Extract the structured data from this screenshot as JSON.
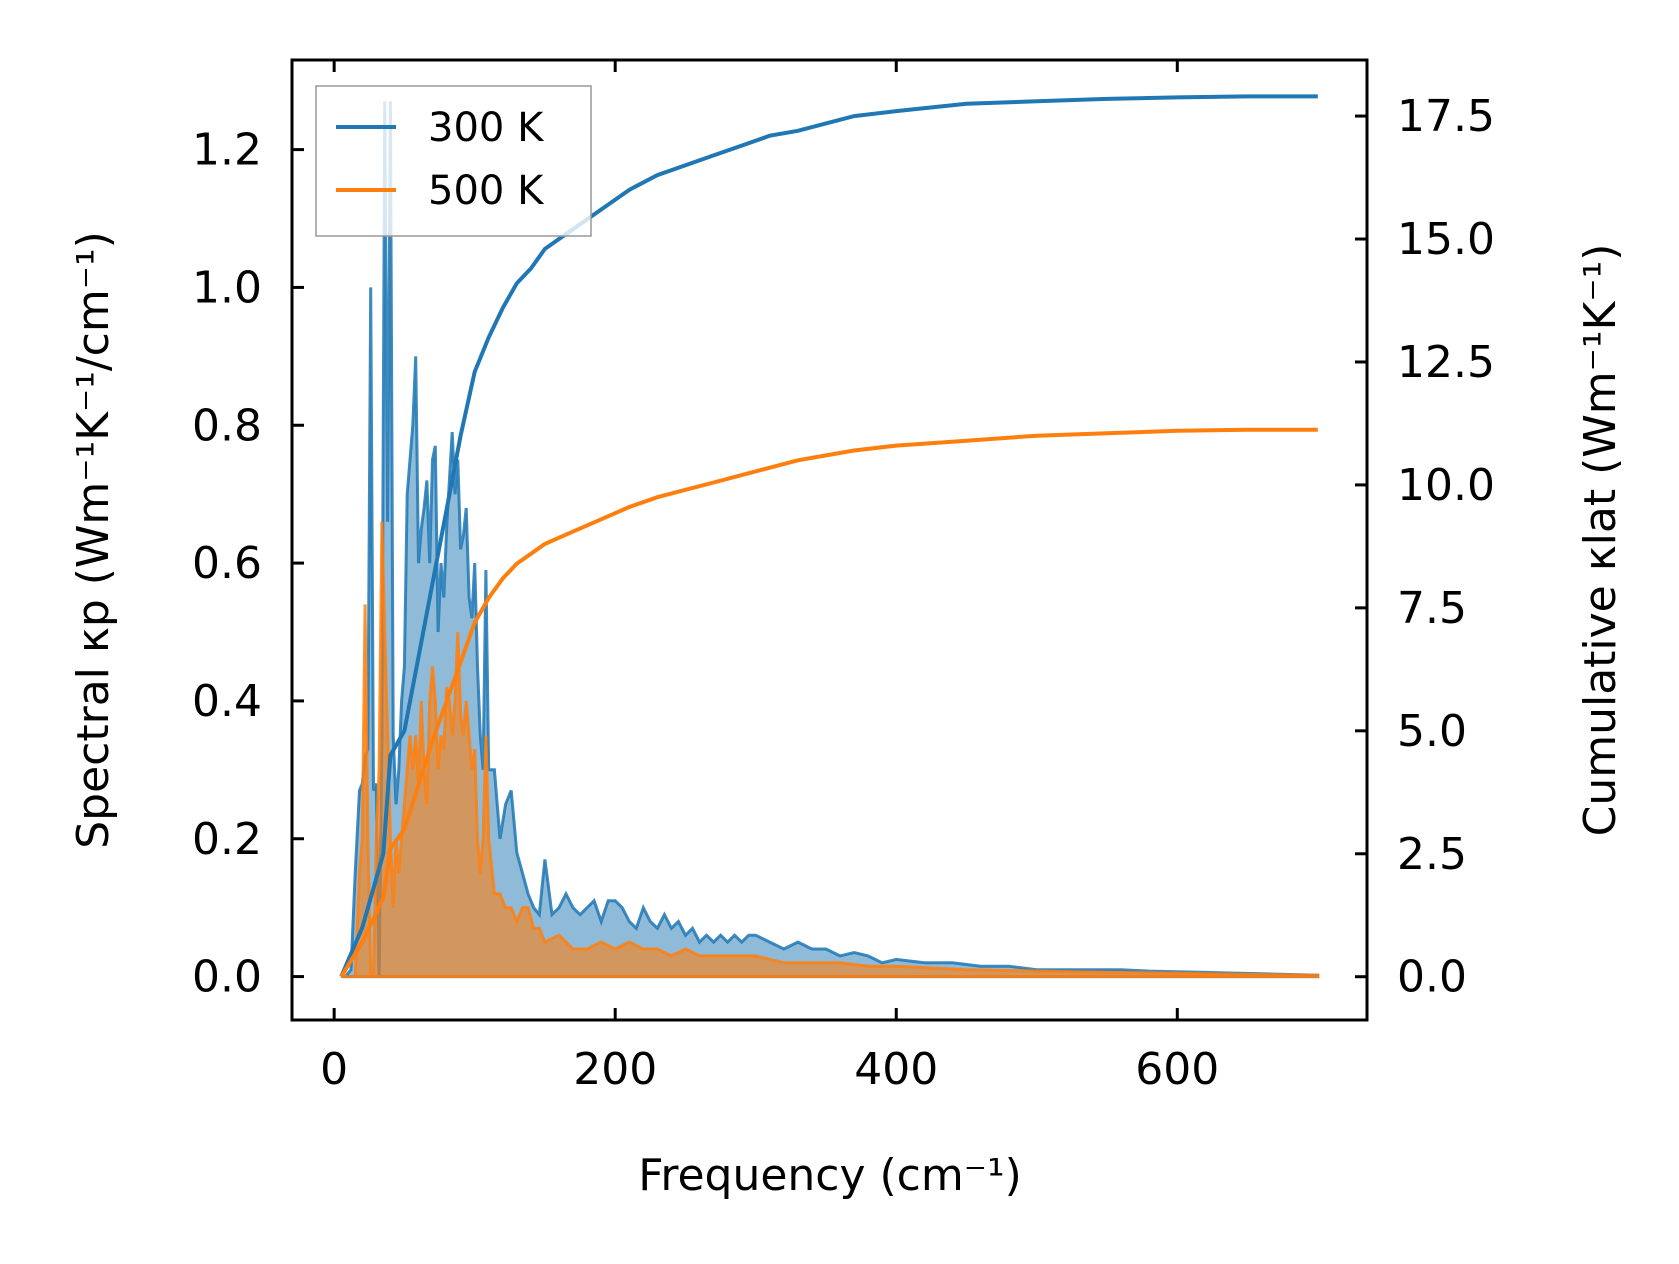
{
  "chart_data": {
    "type": "area+line (dual axis)",
    "xlabel": "Frequency (cm⁻¹)",
    "ylabel_left": "Spectral κp (Wm⁻¹K⁻¹/cm⁻¹)",
    "ylabel_right": "Cumulative κlat (Wm⁻¹K⁻¹)",
    "xlim": [
      -30,
      735
    ],
    "ylim_left": [
      -0.063,
      1.33
    ],
    "ylim_right": [
      -0.88,
      18.64
    ],
    "x_ticks": [
      "0",
      "200",
      "400",
      "600"
    ],
    "x_tick_values": [
      0,
      200,
      400,
      600
    ],
    "left_ticks": [
      "0.0",
      "0.2",
      "0.4",
      "0.6",
      "0.8",
      "1.0",
      "1.2"
    ],
    "left_tick_values": [
      0.0,
      0.2,
      0.4,
      0.6,
      0.8,
      1.0,
      1.2
    ],
    "right_ticks": [
      "0.0",
      "2.5",
      "5.0",
      "7.5",
      "10.0",
      "12.5",
      "15.0",
      "17.5"
    ],
    "right_tick_values": [
      0.0,
      2.5,
      5.0,
      7.5,
      10.0,
      12.5,
      15.0,
      17.5
    ],
    "legend": {
      "placement": "top-left",
      "entries": [
        "300 K",
        "500 K"
      ]
    },
    "colors": {
      "300K": "#1f77b4",
      "500K": "#ff7f0e"
    },
    "series": [
      {
        "name": "300 K",
        "spectral_x": [
          5,
          8,
          12,
          15,
          18,
          20,
          22,
          24,
          26,
          28,
          30,
          32,
          34,
          36,
          38,
          40,
          42,
          44,
          46,
          48,
          50,
          52,
          54,
          56,
          58,
          60,
          62,
          64,
          66,
          68,
          70,
          72,
          74,
          76,
          78,
          80,
          82,
          84,
          86,
          88,
          90,
          92,
          94,
          96,
          98,
          100,
          102,
          104,
          106,
          108,
          110,
          114,
          118,
          122,
          126,
          130,
          134,
          138,
          142,
          146,
          150,
          155,
          160,
          165,
          170,
          175,
          180,
          185,
          190,
          195,
          200,
          205,
          210,
          215,
          220,
          225,
          230,
          235,
          240,
          245,
          250,
          255,
          260,
          265,
          270,
          275,
          280,
          285,
          290,
          295,
          300,
          310,
          320,
          330,
          340,
          350,
          360,
          370,
          380,
          390,
          400,
          420,
          440,
          460,
          480,
          500,
          520,
          540,
          560,
          580,
          600,
          620,
          640,
          660,
          680,
          700
        ],
        "spectral_y": [
          0.0,
          0.0,
          0.01,
          0.15,
          0.27,
          0.28,
          0.32,
          0.33,
          1.0,
          0.27,
          0.28,
          0.0,
          0.35,
          1.27,
          0.66,
          1.27,
          0.35,
          0.25,
          0.3,
          0.4,
          0.45,
          0.7,
          0.75,
          0.8,
          0.9,
          0.6,
          0.65,
          0.68,
          0.72,
          0.6,
          0.75,
          0.77,
          0.5,
          0.6,
          0.55,
          0.65,
          0.72,
          0.79,
          0.7,
          0.75,
          0.62,
          0.64,
          0.68,
          0.55,
          0.52,
          0.6,
          0.45,
          0.35,
          0.3,
          0.59,
          0.3,
          0.3,
          0.2,
          0.25,
          0.27,
          0.18,
          0.15,
          0.12,
          0.1,
          0.09,
          0.17,
          0.09,
          0.1,
          0.12,
          0.1,
          0.09,
          0.1,
          0.11,
          0.08,
          0.11,
          0.11,
          0.1,
          0.08,
          0.07,
          0.1,
          0.08,
          0.07,
          0.09,
          0.07,
          0.08,
          0.06,
          0.07,
          0.05,
          0.06,
          0.05,
          0.06,
          0.05,
          0.06,
          0.05,
          0.06,
          0.06,
          0.05,
          0.04,
          0.05,
          0.04,
          0.04,
          0.03,
          0.035,
          0.03,
          0.02,
          0.025,
          0.02,
          0.02,
          0.015,
          0.015,
          0.01,
          0.01,
          0.01,
          0.01,
          0.008,
          0.007,
          0.006,
          0.005,
          0.004,
          0.003,
          0.002
        ],
        "cumulative_x": [
          5,
          20,
          35,
          40,
          50,
          60,
          70,
          80,
          90,
          100,
          110,
          120,
          130,
          140,
          150,
          170,
          190,
          210,
          230,
          250,
          270,
          290,
          310,
          330,
          350,
          370,
          400,
          450,
          500,
          550,
          600,
          650,
          700
        ],
        "cumulative_y": [
          0.0,
          1.0,
          2.5,
          4.5,
          5.0,
          6.5,
          8.0,
          9.5,
          11.0,
          12.3,
          13.0,
          13.6,
          14.1,
          14.4,
          14.8,
          15.2,
          15.6,
          16.0,
          16.3,
          16.5,
          16.7,
          16.9,
          17.1,
          17.2,
          17.35,
          17.5,
          17.6,
          17.75,
          17.8,
          17.85,
          17.88,
          17.9,
          17.9
        ]
      },
      {
        "name": "500 K",
        "spectral_x": [
          5,
          10,
          15,
          18,
          20,
          22,
          24,
          26,
          28,
          30,
          32,
          34,
          36,
          38,
          40,
          42,
          44,
          46,
          48,
          50,
          52,
          54,
          56,
          58,
          60,
          62,
          64,
          66,
          68,
          70,
          72,
          74,
          76,
          78,
          80,
          82,
          84,
          86,
          88,
          90,
          92,
          94,
          96,
          98,
          100,
          102,
          104,
          106,
          108,
          110,
          114,
          118,
          122,
          126,
          130,
          134,
          138,
          142,
          146,
          150,
          160,
          170,
          180,
          190,
          200,
          210,
          220,
          230,
          240,
          250,
          260,
          270,
          280,
          290,
          300,
          320,
          340,
          360,
          380,
          400,
          450,
          500,
          550,
          600,
          650,
          700
        ],
        "spectral_y": [
          0.0,
          0.0,
          0.0,
          0.15,
          0.2,
          0.54,
          0.2,
          0.0,
          0.0,
          0.2,
          0.3,
          0.66,
          0.5,
          0.35,
          0.2,
          0.1,
          0.2,
          0.15,
          0.2,
          0.25,
          0.3,
          0.35,
          0.3,
          0.35,
          0.28,
          0.4,
          0.3,
          0.25,
          0.4,
          0.45,
          0.4,
          0.3,
          0.35,
          0.33,
          0.42,
          0.4,
          0.35,
          0.4,
          0.5,
          0.38,
          0.35,
          0.4,
          0.35,
          0.3,
          0.33,
          0.2,
          0.15,
          0.2,
          0.35,
          0.2,
          0.12,
          0.12,
          0.1,
          0.1,
          0.08,
          0.1,
          0.1,
          0.07,
          0.07,
          0.05,
          0.06,
          0.04,
          0.04,
          0.05,
          0.04,
          0.05,
          0.04,
          0.04,
          0.03,
          0.04,
          0.03,
          0.03,
          0.03,
          0.03,
          0.03,
          0.02,
          0.02,
          0.02,
          0.015,
          0.015,
          0.01,
          0.008,
          0.006,
          0.005,
          0.003,
          0.002
        ],
        "cumulative_x": [
          5,
          20,
          35,
          40,
          50,
          60,
          70,
          80,
          90,
          100,
          110,
          120,
          130,
          140,
          150,
          170,
          190,
          210,
          230,
          250,
          270,
          290,
          310,
          330,
          350,
          370,
          400,
          450,
          500,
          550,
          600,
          650,
          700
        ],
        "cumulative_y": [
          0.0,
          0.7,
          1.6,
          2.6,
          3.0,
          3.9,
          4.8,
          5.6,
          6.4,
          7.2,
          7.7,
          8.1,
          8.4,
          8.6,
          8.8,
          9.05,
          9.3,
          9.55,
          9.75,
          9.9,
          10.05,
          10.2,
          10.35,
          10.5,
          10.6,
          10.7,
          10.8,
          10.9,
          11.0,
          11.05,
          11.1,
          11.12,
          11.12
        ]
      }
    ]
  }
}
